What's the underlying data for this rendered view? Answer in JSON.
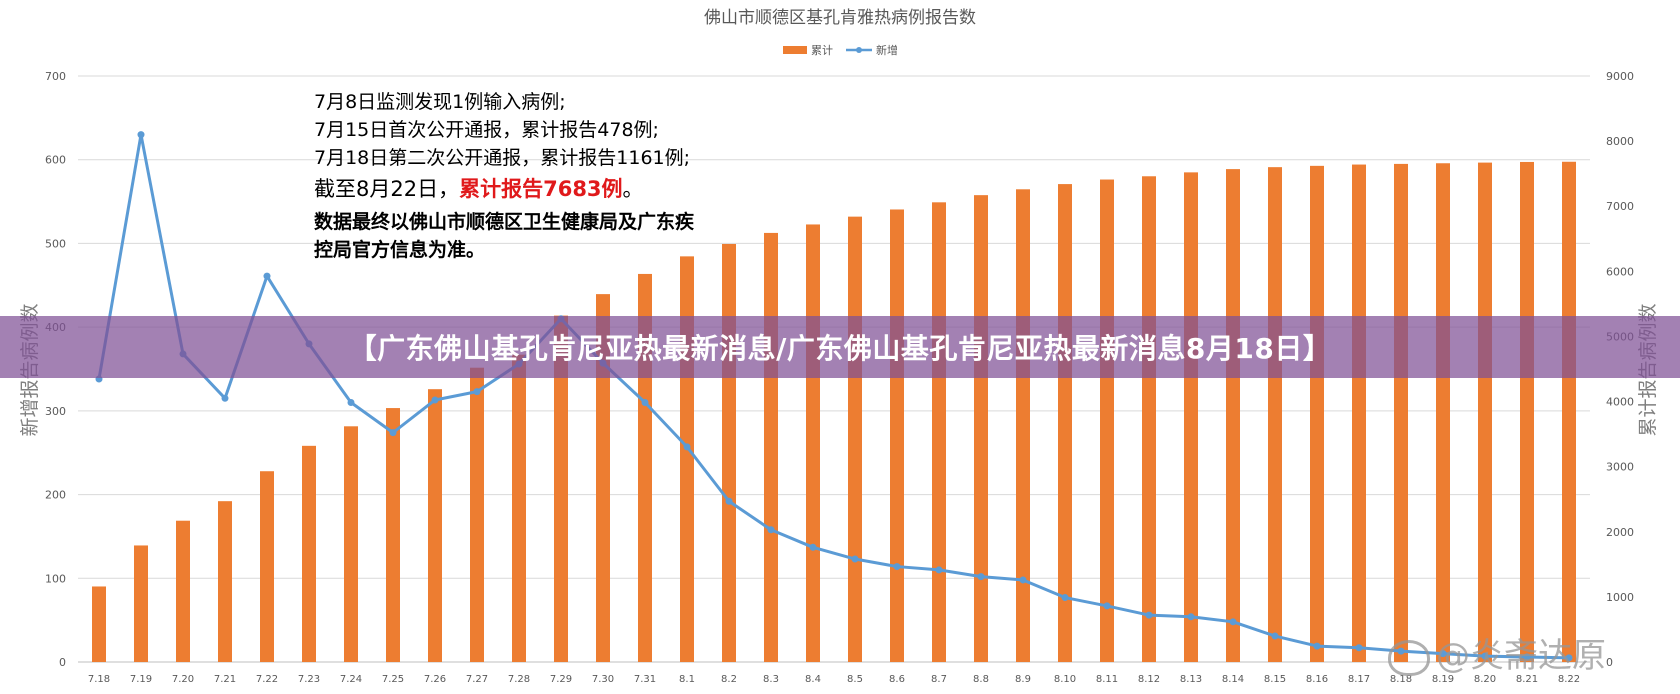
{
  "chart_data": {
    "type": "bar",
    "title": "佛山市顺德区基孔肯雅热病例报告数",
    "ylabel": "新增报告病例数",
    "y2label": "累计报告病例数",
    "ylim": [
      0,
      700
    ],
    "y2lim": [
      0,
      9000
    ],
    "yticks": [
      "0",
      "100",
      "200",
      "300",
      "400",
      "500",
      "600",
      "700"
    ],
    "y2ticks": [
      "0",
      "1000",
      "2000",
      "3000",
      "4000",
      "5000",
      "6000",
      "7000",
      "8000",
      "9000"
    ],
    "categories": [
      "7.18",
      "7.19",
      "7.20",
      "7.21",
      "7.22",
      "7.23",
      "7.24",
      "7.25",
      "7.26",
      "7.27",
      "7.28",
      "7.29",
      "7.30",
      "7.31",
      "8.1",
      "8.2",
      "8.3",
      "8.4",
      "8.5",
      "8.6",
      "8.7",
      "8.8",
      "8.9",
      "8.10",
      "8.11",
      "8.12",
      "8.13",
      "8.14",
      "8.15",
      "8.16",
      "8.17",
      "8.18",
      "8.19",
      "8.20",
      "8.21",
      "8.22"
    ],
    "legend_position": "top-center",
    "series": [
      {
        "name": "累计",
        "kind": "bar",
        "axis": "right",
        "color": "#ed7d31",
        "values": [
          1160,
          1790,
          2170,
          2470,
          2930,
          3320,
          3620,
          3900,
          4190,
          4520,
          4720,
          5320,
          5650,
          5960,
          6230,
          6420,
          6590,
          6720,
          6840,
          6950,
          7060,
          7170,
          7260,
          7340,
          7410,
          7460,
          7520,
          7570,
          7600,
          7620,
          7640,
          7650,
          7660,
          7670,
          7680,
          7683
        ]
      },
      {
        "name": "新增",
        "kind": "line",
        "axis": "left",
        "color": "#5b9bd5",
        "values": [
          338,
          630,
          368,
          315,
          461,
          380,
          310,
          274,
          313,
          323,
          356,
          410,
          357,
          310,
          257,
          192,
          158,
          137,
          123,
          114,
          110,
          102,
          98,
          77,
          67,
          56,
          54,
          48,
          31,
          19,
          17,
          13,
          10,
          7,
          6,
          5
        ]
      }
    ],
    "annotation": {
      "line1": "7月8日监测发现1例输入病例;",
      "line2": "7月15日首次公开通报，累计报告478例;",
      "line3": "7月18日第二次公开通报，累计报告1161例;",
      "line4_prefix": "截至8月22日，",
      "line4_highlight": "累计报告7683例",
      "line4_suffix": "。",
      "line5": "数据最终以佛山市顺德区卫生健康局及广东疾",
      "line6": "控局官方信息为准。"
    }
  },
  "banner": {
    "text": "【广东佛山基孔肯尼亚热最新消息/广东佛山基孔肯尼亚热最新消息8月18日】"
  },
  "watermark": {
    "text": "@炎斋达原"
  }
}
